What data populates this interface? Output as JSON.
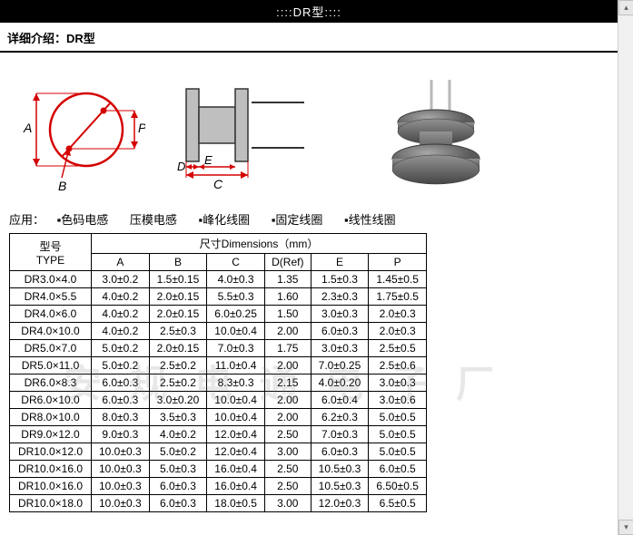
{
  "header": {
    "title": "::::DR型::::"
  },
  "subheader": {
    "label": "详细介绍：",
    "model": "DR型"
  },
  "diagram": {
    "labels": {
      "A": "A",
      "B": "B",
      "P": "P",
      "C": "C",
      "D": "D",
      "E": "E"
    },
    "line_color": "#d40000",
    "fill_color": "#bfbfbf",
    "outline_color": "#333333"
  },
  "applications": {
    "prefix": "应用：",
    "items": [
      "色码电感",
      "压模电感",
      "峰化线圈",
      "固定线圈",
      "线性线圈"
    ]
  },
  "table": {
    "header_group": {
      "type": "型号",
      "type_en": "TYPE",
      "dims": "尺寸Dimensions（mm）"
    },
    "columns": [
      "A",
      "B",
      "C",
      "D(Ref)",
      "E",
      "P"
    ],
    "rows": [
      {
        "type": "DR3.0×4.0",
        "A": "3.0±0.2",
        "B": "1.5±0.15",
        "C": "4.0±0.3",
        "D": "1.35",
        "E": "1.5±0.3",
        "P": "1.45±0.5"
      },
      {
        "type": "DR4.0×5.5",
        "A": "4.0±0.2",
        "B": "2.0±0.15",
        "C": "5.5±0.3",
        "D": "1.60",
        "E": "2.3±0.3",
        "P": "1.75±0.5"
      },
      {
        "type": "DR4.0×6.0",
        "A": "4.0±0.2",
        "B": "2.0±0.15",
        "C": "6.0±0.25",
        "D": "1.50",
        "E": "3.0±0.3",
        "P": "2.0±0.3"
      },
      {
        "type": "DR4.0×10.0",
        "A": "4.0±0.2",
        "B": "2.5±0.3",
        "C": "10.0±0.4",
        "D": "2.00",
        "E": "6.0±0.3",
        "P": "2.0±0.3"
      },
      {
        "type": "DR5.0×7.0",
        "A": "5.0±0.2",
        "B": "2.0±0.15",
        "C": "7.0±0.3",
        "D": "1.75",
        "E": "3.0±0.3",
        "P": "2.5±0.5"
      },
      {
        "type": "DR5.0×11.0",
        "A": "5.0±0.2",
        "B": "2.5±0.2",
        "C": "11.0±0.4",
        "D": "2.00",
        "E": "7.0±0.25",
        "P": "2.5±0.6"
      },
      {
        "type": "DR6.0×8.3",
        "A": "6.0±0.3",
        "B": "2.5±0.2",
        "C": "8.3±0.3",
        "D": "2.15",
        "E": "4.0±0.20",
        "P": "3.0±0.3"
      },
      {
        "type": "DR6.0×10.0",
        "A": "6.0±0.3",
        "B": "3.0±0.20",
        "C": "10.0±0.4",
        "D": "2.00",
        "E": "6.0±0.4",
        "P": "3.0±0.6"
      },
      {
        "type": "DR8.0×10.0",
        "A": "8.0±0.3",
        "B": "3.5±0.3",
        "C": "10.0±0.4",
        "D": "2.00",
        "E": "6.2±0.3",
        "P": "5.0±0.5"
      },
      {
        "type": "DR9.0×12.0",
        "A": "9.0±0.3",
        "B": "4.0±0.2",
        "C": "12.0±0.4",
        "D": "2.50",
        "E": "7.0±0.3",
        "P": "5.0±0.5"
      },
      {
        "type": "DR10.0×12.0",
        "A": "10.0±0.3",
        "B": "5.0±0.2",
        "C": "12.0±0.4",
        "D": "3.00",
        "E": "6.0±0.3",
        "P": "5.0±0.5"
      },
      {
        "type": "DR10.0×16.0",
        "A": "10.0±0.3",
        "B": "5.0±0.3",
        "C": "16.0±0.4",
        "D": "2.50",
        "E": "10.5±0.3",
        "P": "6.0±0.5"
      },
      {
        "type": "DR10.0×16.0",
        "A": "10.0±0.3",
        "B": "6.0±0.3",
        "C": "16.0±0.4",
        "D": "2.50",
        "E": "10.5±0.3",
        "P": "6.50±0.5"
      },
      {
        "type": "DR10.0×18.0",
        "A": "10.0±0.3",
        "B": "6.0±0.3",
        "C": "18.0±0.5",
        "D": "3.00",
        "E": "12.0±0.3",
        "P": "6.5±0.5"
      }
    ]
  },
  "watermark": {
    "text": "安规电通电子厂"
  }
}
